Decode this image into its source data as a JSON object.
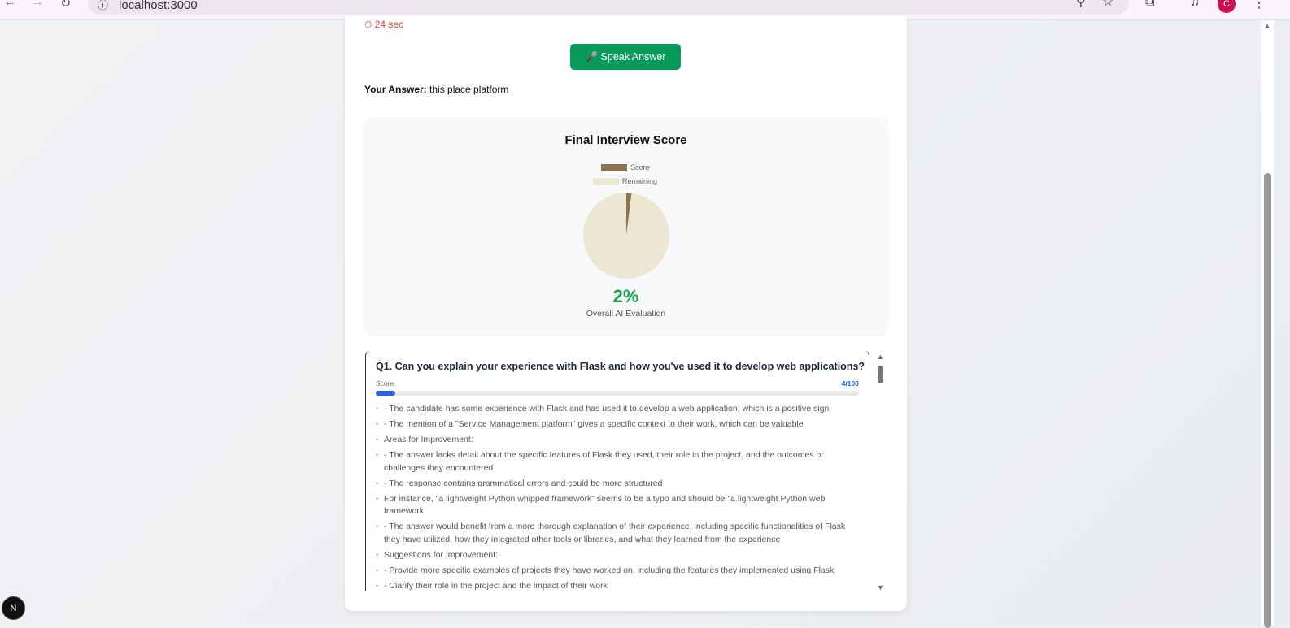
{
  "browser": {
    "url": "localhost:3000",
    "profile_initial": "C"
  },
  "timer": "⏱ 24 sec",
  "speak_button": "🎤 Speak Answer",
  "answer": {
    "label": "Your Answer:",
    "value": "this place platform"
  },
  "score_panel": {
    "title": "Final Interview Score",
    "percent": "2%",
    "caption": "Overall AI Evaluation",
    "chart_data": {
      "type": "pie",
      "title": "Final Interview Score",
      "categories": [
        "Score",
        "Remaining"
      ],
      "values": [
        2,
        98
      ],
      "colors": [
        "#8b7350",
        "#ece6d2"
      ],
      "legend": "top"
    }
  },
  "question": {
    "title": "Q1. Can you explain your experience with Flask and how you've used it to develop web applications?",
    "score_label": "Score",
    "score_value": "4/100",
    "score_fraction": 0.04,
    "feedback": [
      "- The candidate has some experience with Flask and has used it to develop a web application, which is a positive sign",
      "- The mention of a \"Service Management platform\" gives a specific context to their work, which can be valuable",
      "Areas for Improvement:",
      "- The answer lacks detail about the specific features of Flask they used, their role in the project, and the outcomes or challenges they encountered",
      "- The response contains grammatical errors and could be more structured",
      "For instance, \"a lightweight Python whipped framework\" seems to be a typo and should be \"a lightweight Python web framework",
      "- The answer would benefit from a more thorough explanation of their experience, including specific functionalities of Flask they have utilized, how they integrated other tools or libraries, and what they learned from the experience",
      "Suggestions for Improvement:",
      "- Provide more specific examples of projects they have worked on, including the features they implemented using Flask",
      "- Clarify their role in the project and the impact of their work"
    ]
  },
  "nextjs_badge": "N"
}
